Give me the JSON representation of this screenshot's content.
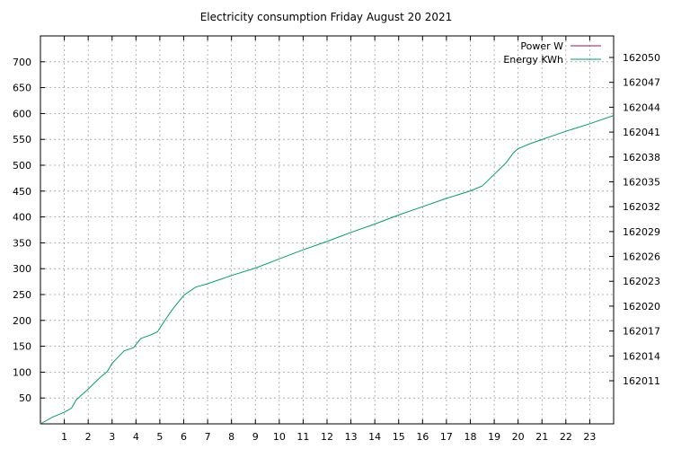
{
  "chart_data": {
    "type": "line",
    "title": "Electricity consumption Friday August 20 2021",
    "x_ticks": [
      1,
      2,
      3,
      4,
      5,
      6,
      7,
      8,
      9,
      10,
      11,
      12,
      13,
      14,
      15,
      16,
      17,
      18,
      19,
      20,
      21,
      22,
      23
    ],
    "xlim": [
      0,
      24
    ],
    "y_left_ticks": [
      50,
      100,
      150,
      200,
      250,
      300,
      350,
      400,
      450,
      500,
      550,
      600,
      650,
      700
    ],
    "y_left_lim": [
      0,
      750
    ],
    "y_right_ticks": [
      162011,
      162014,
      162017,
      162020,
      162023,
      162026,
      162029,
      162032,
      162035,
      162038,
      162041,
      162044,
      162047,
      162050
    ],
    "y_right_lim": [
      162005.8,
      162052.6
    ],
    "grid": true,
    "legend_position": "top-right",
    "series": [
      {
        "name": "Power W",
        "color": "#8b1a6b",
        "values": []
      },
      {
        "name": "Energy KWh",
        "color": "#009e73",
        "axis": "right",
        "x": [
          0,
          0.5,
          1.0,
          1.3,
          1.5,
          2.0,
          2.5,
          2.8,
          3.0,
          3.5,
          3.9,
          4.2,
          4.6,
          4.9,
          5.1,
          5.5,
          6.0,
          6.5,
          7.0,
          7.5,
          8.0,
          9.0,
          10.0,
          11.0,
          12.0,
          13.0,
          14.0,
          15.0,
          16.0,
          17.0,
          18.0,
          18.5,
          19.0,
          19.5,
          19.8,
          20.0,
          20.5,
          21.0,
          21.5,
          22.0,
          23.0,
          24.0
        ],
        "y": [
          162005.8,
          162006.6,
          162007.2,
          162007.7,
          162008.7,
          162010.0,
          162011.4,
          162012.1,
          162013.1,
          162014.6,
          162015.0,
          162016.1,
          162016.5,
          162016.9,
          162017.8,
          162019.5,
          162021.3,
          162022.3,
          162022.7,
          162023.2,
          162023.7,
          162024.6,
          162025.7,
          162026.8,
          162027.8,
          162028.9,
          162029.9,
          162031.0,
          162032.0,
          162033.0,
          162033.9,
          162034.5,
          162035.9,
          162037.3,
          162038.5,
          162039.0,
          162039.6,
          162040.1,
          162040.6,
          162041.1,
          162042.0,
          162043.0
        ]
      }
    ]
  }
}
